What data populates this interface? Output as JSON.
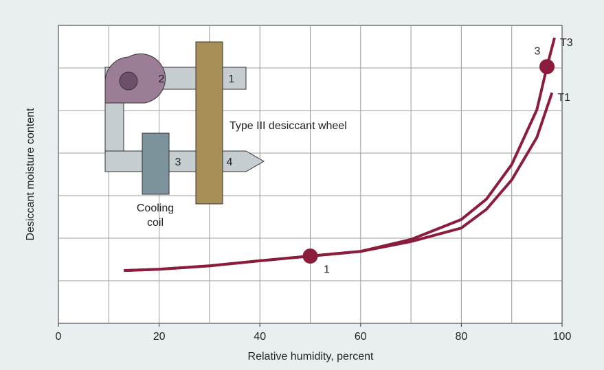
{
  "chart_data": {
    "type": "line",
    "x_label": "Relative humidity, percent",
    "y_label": "Desiccant moisture content",
    "xlim": [
      0,
      100
    ],
    "xticks": [
      0,
      20,
      40,
      60,
      80,
      100
    ],
    "xgrid": [
      10,
      20,
      30,
      40,
      50,
      60,
      70,
      80,
      90
    ],
    "ylim": [
      0,
      7
    ],
    "ygrid": [
      1,
      2,
      3,
      4,
      5,
      6
    ],
    "series": [
      {
        "name": "T1",
        "color": "#8c1c3c",
        "x": [
          13,
          20,
          30,
          40,
          50,
          60,
          70,
          80,
          85,
          90,
          95,
          98
        ],
        "values": [
          1.24,
          1.27,
          1.35,
          1.47,
          1.58,
          1.69,
          1.92,
          2.24,
          2.68,
          3.37,
          4.37,
          5.42
        ]
      },
      {
        "name": "T3",
        "color": "#8c1c3c",
        "x": [
          13,
          20,
          30,
          40,
          50,
          60,
          70,
          80,
          85,
          90,
          95,
          97,
          98.5
        ],
        "values": [
          1.24,
          1.27,
          1.35,
          1.47,
          1.58,
          1.69,
          1.97,
          2.44,
          2.92,
          3.73,
          5.02,
          6.03,
          6.71
        ]
      }
    ],
    "points": [
      {
        "label": "1",
        "x": 50,
        "y": 1.58
      },
      {
        "label": "3",
        "x": 97,
        "y": 6.03
      }
    ]
  },
  "inset": {
    "fan_outlet": "2",
    "wheel_top": "1",
    "coil_outlet": "3",
    "wheel_bottom": "4",
    "wheel_label": "Type III desiccant wheel",
    "coil_label": [
      "Cooling",
      "coil"
    ]
  }
}
